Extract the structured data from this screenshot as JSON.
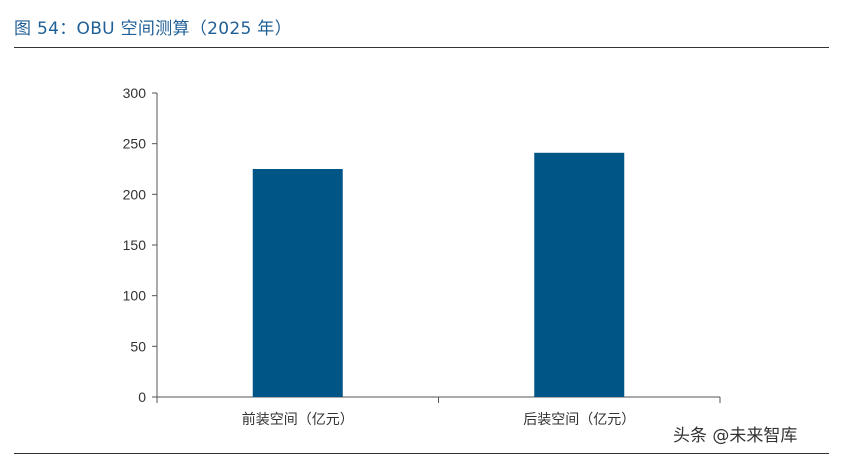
{
  "figure": {
    "title": "图 54：OBU 空间测算（2025 年）"
  },
  "watermark": "头条 @未来智库",
  "chart_data": {
    "type": "bar",
    "categories": [
      "前装空间（亿元）",
      "后装空间（亿元）"
    ],
    "values": [
      225,
      241
    ],
    "title": "",
    "xlabel": "",
    "ylabel": "",
    "ylim": [
      0,
      300
    ],
    "yticks": [
      0,
      50,
      100,
      150,
      200,
      250,
      300
    ],
    "grid": false,
    "legend": "none",
    "bar_color": "#005587"
  }
}
